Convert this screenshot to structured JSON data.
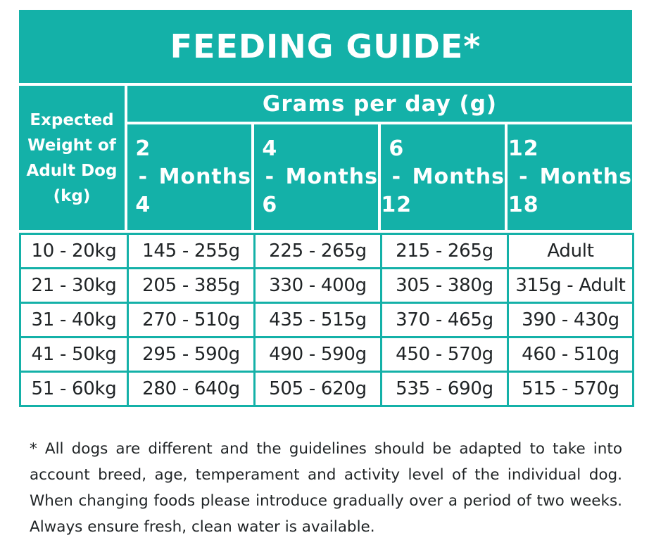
{
  "title": "FEEDING GUIDE*",
  "header": {
    "weight_label": "Expected Weight of Adult Dog (kg)",
    "grams_label": "Grams per day (g)",
    "age_columns": [
      {
        "range": "2 - 4",
        "unit": "Months"
      },
      {
        "range": "4 - 6",
        "unit": "Months"
      },
      {
        "range": "6 - 12",
        "unit": "Months"
      },
      {
        "range": "12 - 18",
        "unit": "Months"
      }
    ]
  },
  "rows": [
    {
      "weight": "10 - 20kg",
      "values": [
        "145 - 255g",
        "225 - 265g",
        "215 - 265g",
        "Adult"
      ]
    },
    {
      "weight": "21 - 30kg",
      "values": [
        "205 - 385g",
        "330 - 400g",
        "305 - 380g",
        "315g - Adult"
      ]
    },
    {
      "weight": "31 - 40kg",
      "values": [
        "270 - 510g",
        "435 - 515g",
        "370 - 465g",
        "390 - 430g"
      ]
    },
    {
      "weight": "41 - 50kg",
      "values": [
        "295 - 590g",
        "490 - 590g",
        "450 - 570g",
        "460 - 510g"
      ]
    },
    {
      "weight": "51 - 60kg",
      "values": [
        "280 - 640g",
        "505 - 620g",
        "535 - 690g",
        "515 - 570g"
      ]
    }
  ],
  "footnote": "* All dogs are different and the guidelines should be adapted to take into account breed, age, temperament and activity level of the individual dog. When changing foods please introduce gradually over a period of two weeks. Always ensure fresh, clean water is available.",
  "colors": {
    "accent": "#14b1a8",
    "text": "#1f2325"
  }
}
